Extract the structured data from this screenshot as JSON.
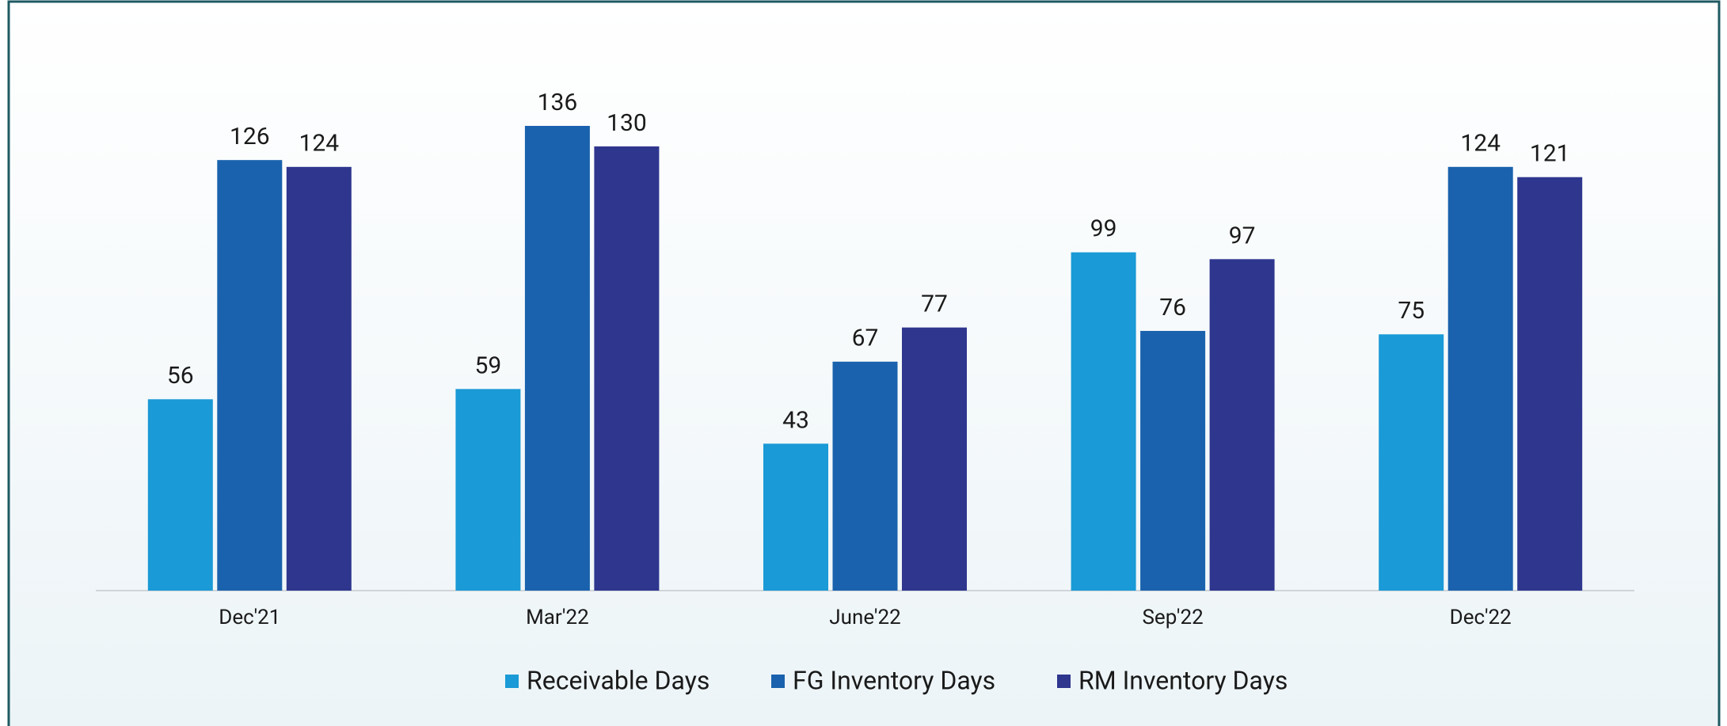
{
  "chart_data": {
    "type": "bar",
    "categories": [
      "Dec'21",
      "Mar'22",
      "June'22",
      "Sep'22",
      "Dec'22"
    ],
    "series": [
      {
        "name": "Receivable Days",
        "color": "#1a9ad6",
        "values": [
          56,
          59,
          43,
          99,
          75
        ]
      },
      {
        "name": "FG Inventory Days",
        "color": "#1a62ad",
        "values": [
          126,
          136,
          67,
          76,
          124
        ]
      },
      {
        "name": "RM Inventory Days",
        "color": "#2e368e",
        "values": [
          124,
          130,
          77,
          97,
          121
        ]
      }
    ],
    "legend": "bottom"
  }
}
